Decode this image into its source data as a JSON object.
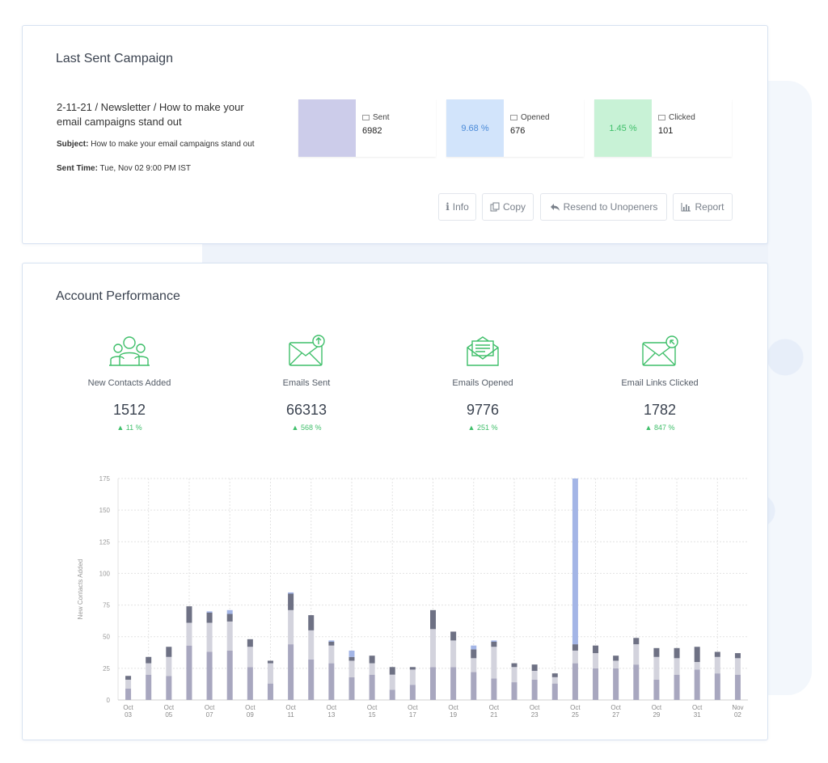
{
  "last_campaign": {
    "title": "Last Sent Campaign",
    "name": "2-11-21 / Newsletter / How to make your email campaigns stand out",
    "subject_label": "Subject:",
    "subject": "How to make your email campaigns stand out",
    "sent_time_label": "Sent Time:",
    "sent_time": "Tue, Nov 02 9:00 PM IST",
    "stats": [
      {
        "label": "Sent",
        "value": "6982",
        "badge": "",
        "color": "#ccccea",
        "icon": "envelope-icon"
      },
      {
        "label": "Opened",
        "value": "676",
        "badge": "9.68 %",
        "color": "#d2e4fb",
        "badge_color": "#4a8ad8",
        "icon": "envelope-icon"
      },
      {
        "label": "Clicked",
        "value": "101",
        "badge": "1.45 %",
        "color": "#c8f2d6",
        "badge_color": "#3fbf6a",
        "icon": "envelope-icon"
      }
    ],
    "buttons": [
      {
        "label": "Info",
        "icon": "info-icon"
      },
      {
        "label": "Copy",
        "icon": "copy-icon"
      },
      {
        "label": "Resend to Unopeners",
        "icon": "reply-icon"
      },
      {
        "label": "Report",
        "icon": "bar-chart-icon"
      }
    ]
  },
  "performance": {
    "title": "Account Performance",
    "accent": "#3fbf6a",
    "kpis": [
      {
        "label": "New Contacts Added",
        "value": "1512",
        "delta": "11 %",
        "icon": "contacts-icon"
      },
      {
        "label": "Emails Sent",
        "value": "66313",
        "delta": "568 %",
        "icon": "email-sent-icon"
      },
      {
        "label": "Emails Opened",
        "value": "9776",
        "delta": "251 %",
        "icon": "email-opened-icon"
      },
      {
        "label": "Email Links Clicked",
        "value": "1782",
        "delta": "847 %",
        "icon": "email-clicked-icon"
      }
    ]
  },
  "chart_data": {
    "type": "bar",
    "stacked": true,
    "ylabel": "New Contacts Added",
    "ylim": [
      0,
      175
    ],
    "yticks": [
      0,
      25,
      50,
      75,
      100,
      125,
      150,
      175
    ],
    "grid": true,
    "x_tick_labels": [
      [
        "Oct",
        "03"
      ],
      [
        "Oct",
        "05"
      ],
      [
        "Oct",
        "07"
      ],
      [
        "Oct",
        "09"
      ],
      [
        "Oct",
        "11"
      ],
      [
        "Oct",
        "13"
      ],
      [
        "Oct",
        "15"
      ],
      [
        "Oct",
        "17"
      ],
      [
        "Oct",
        "19"
      ],
      [
        "Oct",
        "21"
      ],
      [
        "Oct",
        "23"
      ],
      [
        "Oct",
        "25"
      ],
      [
        "Oct",
        "27"
      ],
      [
        "Oct",
        "29"
      ],
      [
        "Oct",
        "31"
      ],
      [
        "Nov",
        "02"
      ]
    ],
    "categories": [
      "Oct 03",
      "Oct 04",
      "Oct 05",
      "Oct 06",
      "Oct 07",
      "Oct 08",
      "Oct 09",
      "Oct 10",
      "Oct 11",
      "Oct 12",
      "Oct 13",
      "Oct 14",
      "Oct 15",
      "Oct 16",
      "Oct 17",
      "Oct 18",
      "Oct 19",
      "Oct 20",
      "Oct 21",
      "Oct 22",
      "Oct 23",
      "Oct 24",
      "Oct 25",
      "Oct 26",
      "Oct 27",
      "Oct 28",
      "Oct 29",
      "Oct 30",
      "Oct 31",
      "Nov 01",
      "Nov 02"
    ],
    "series": [
      {
        "color": "#a8a7bf",
        "values": [
          9,
          20,
          19,
          43,
          38,
          39,
          26,
          13,
          44,
          32,
          29,
          18,
          20,
          8,
          12,
          26,
          26,
          22,
          17,
          14,
          16,
          13,
          29,
          25,
          25,
          28,
          16,
          20,
          24,
          21,
          20
        ]
      },
      {
        "color": "#d3d3dd",
        "values": [
          7,
          9,
          15,
          18,
          23,
          23,
          16,
          16,
          27,
          23,
          14,
          13,
          9,
          12,
          12,
          30,
          21,
          11,
          25,
          12,
          7,
          5,
          10,
          12,
          6,
          16,
          18,
          13,
          6,
          13,
          13
        ]
      },
      {
        "color": "#6e7184",
        "values": [
          3,
          5,
          8,
          13,
          8,
          6,
          6,
          2,
          13,
          12,
          3,
          3,
          6,
          6,
          2,
          15,
          7,
          7,
          4,
          3,
          5,
          3,
          5,
          6,
          4,
          5,
          7,
          8,
          12,
          4,
          4
        ]
      },
      {
        "color": "#a3b5e6",
        "values": [
          0,
          0,
          0,
          0,
          1,
          3,
          0,
          0,
          1,
          0,
          1,
          5,
          0,
          0,
          0,
          0,
          0,
          3,
          1,
          0,
          0,
          0,
          131,
          0,
          0,
          0,
          0,
          0,
          0,
          0,
          0
        ]
      }
    ]
  }
}
